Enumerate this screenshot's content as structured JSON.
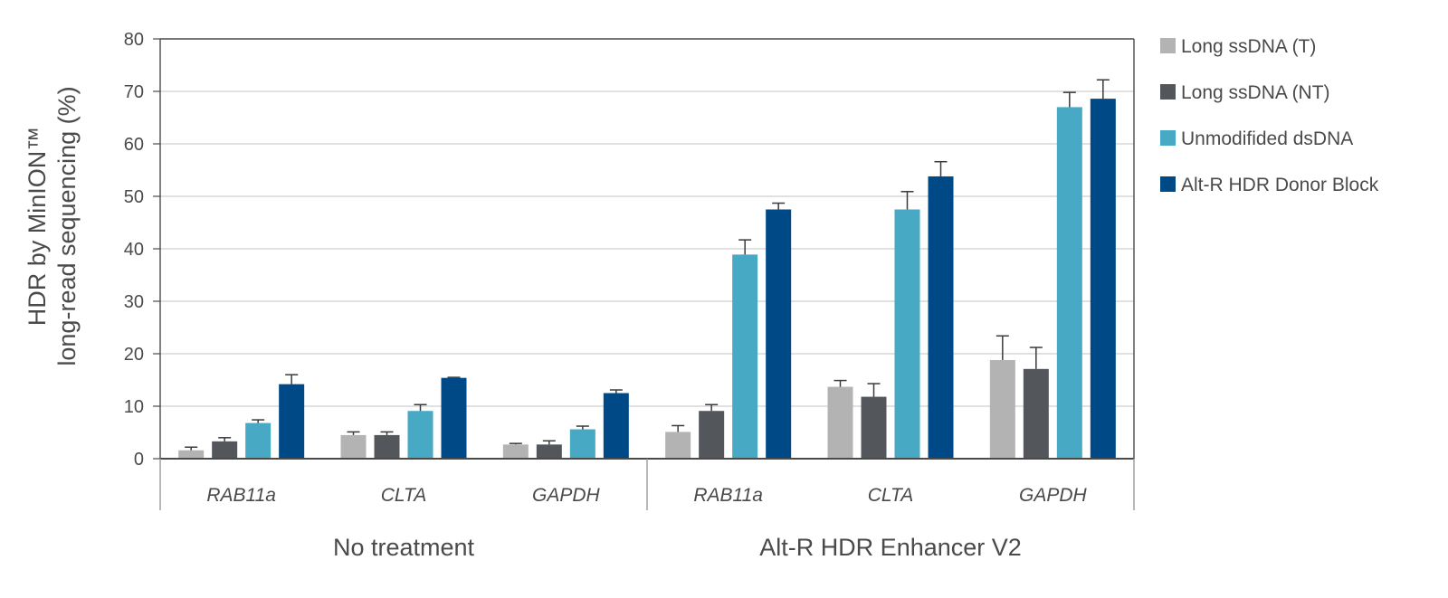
{
  "chart_data": {
    "type": "bar",
    "title": "",
    "xlabel": "",
    "ylabel_lines": [
      "HDR by MinION™",
      "long-read sequencing (%)"
    ],
    "ylim": [
      0,
      80
    ],
    "yticks": [
      0,
      10,
      20,
      30,
      40,
      50,
      60,
      70,
      80
    ],
    "grid": true,
    "legend_position": "right",
    "groups": [
      {
        "label": "No treatment",
        "categories": [
          "RAB11a",
          "CLTA",
          "GAPDH"
        ]
      },
      {
        "label": "Alt-R HDR Enhancer V2",
        "categories": [
          "RAB11a",
          "CLTA",
          "GAPDH"
        ]
      }
    ],
    "categories": [
      "RAB11a",
      "CLTA",
      "GAPDH",
      "RAB11a",
      "CLTA",
      "GAPDH"
    ],
    "series": [
      {
        "name": "Long ssDNA (T)",
        "color": "#b3b3b3",
        "values": [
          1.6,
          4.5,
          2.7,
          5.1,
          13.7,
          18.8
        ],
        "errors": [
          0.6,
          0.6,
          0.2,
          1.2,
          1.2,
          4.6
        ]
      },
      {
        "name": "Long ssDNA (NT)",
        "color": "#53575b",
        "values": [
          3.3,
          4.5,
          2.7,
          9.1,
          11.8,
          17.1
        ],
        "errors": [
          0.7,
          0.6,
          0.7,
          1.2,
          2.5,
          4.1
        ]
      },
      {
        "name": "Unmodifided dsDNA",
        "color": "#48a9c5",
        "values": [
          6.8,
          9.1,
          5.6,
          38.9,
          47.5,
          67.0
        ],
        "errors": [
          0.6,
          1.2,
          0.6,
          2.8,
          3.4,
          2.8
        ]
      },
      {
        "name": "Alt-R HDR Donor Block",
        "color": "#004987",
        "values": [
          14.2,
          15.4,
          12.5,
          47.5,
          53.8,
          68.6
        ],
        "errors": [
          1.8,
          0.1,
          0.6,
          1.2,
          2.8,
          3.6
        ]
      }
    ]
  }
}
